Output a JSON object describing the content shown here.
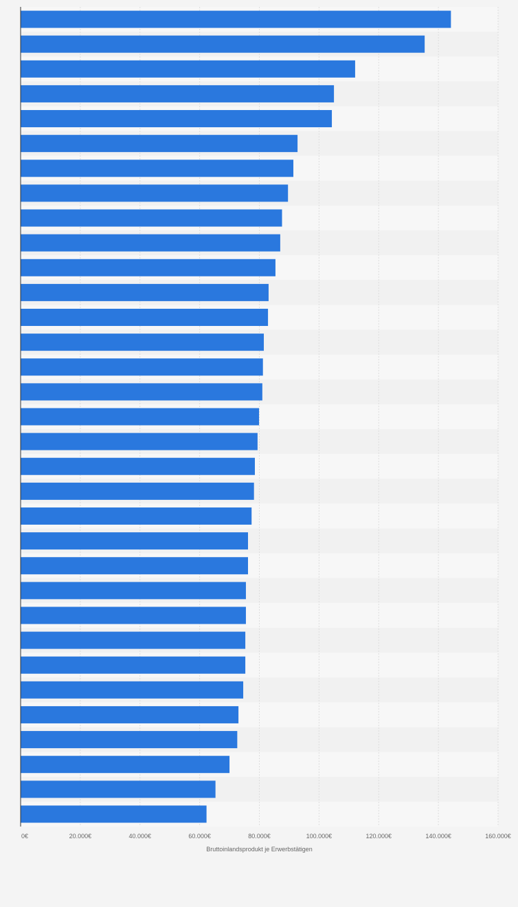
{
  "chart_data": {
    "type": "bar",
    "orientation": "horizontal",
    "title": "",
    "xlabel": "Bruttoinlandsprodukt je Erwerbstätigen",
    "ylabel": "",
    "xlim": [
      0,
      160000
    ],
    "grid": true,
    "legend": "none",
    "x_ticks": [
      0,
      20000,
      40000,
      60000,
      80000,
      100000,
      120000,
      140000,
      160000
    ],
    "x_tick_labels": [
      "0€",
      "20.000€",
      "40.000€",
      "60.000€",
      "80.000€",
      "100.000€",
      "120.000€",
      "140.000€",
      "160.000€"
    ],
    "values": [
      144200,
      135400,
      112100,
      105000,
      104300,
      92800,
      91400,
      89600,
      87600,
      87000,
      85400,
      83100,
      82900,
      81500,
      81200,
      81000,
      79900,
      79400,
      78500,
      78200,
      77400,
      76200,
      76200,
      75500,
      75500,
      75300,
      75300,
      74600,
      73000,
      72600,
      70000,
      65300,
      62300
    ],
    "colors": {
      "bar": "#2a78de",
      "background": "#f4f4f4",
      "band_light": "#f7f7f7",
      "band_dark": "#f1f1f1",
      "grid": "#dddddd",
      "axis": "#333333",
      "text": "#666666"
    }
  }
}
